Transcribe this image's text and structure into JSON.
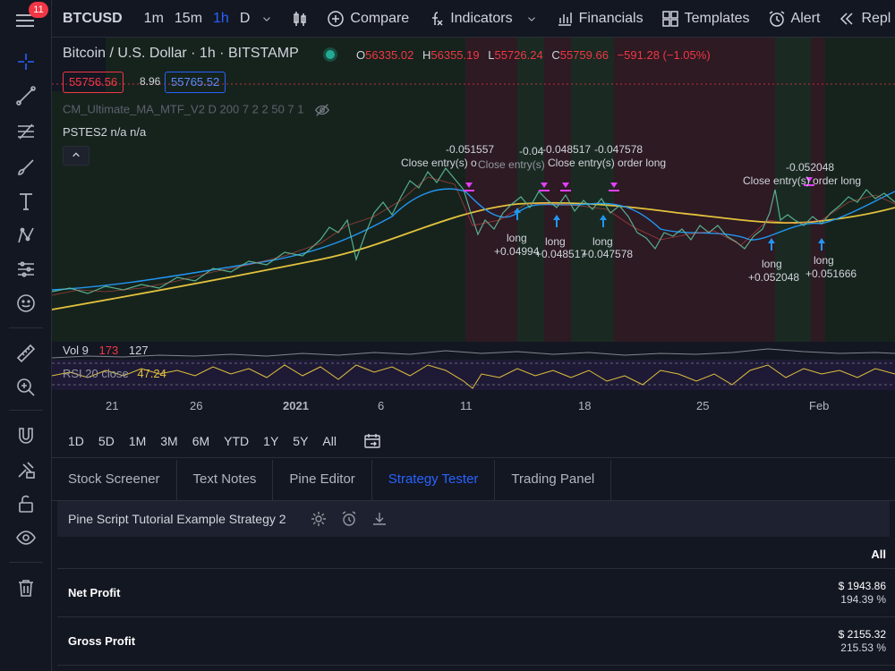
{
  "notification_count": "11",
  "top_bar": {
    "symbol": "BTCUSD",
    "intervals": [
      "1m",
      "15m",
      "1h",
      "D"
    ],
    "selected_interval": "1h",
    "compare": "Compare",
    "indicators": "Indicators",
    "financials": "Financials",
    "templates": "Templates",
    "alert": "Alert",
    "replay": "Repl"
  },
  "chart": {
    "title": "Bitcoin / U.S. Dollar · 1h · BITSTAMP",
    "ohlc": {
      "o": "56335.02",
      "h": "56355.19",
      "l": "55726.24",
      "c": "55759.66",
      "change": "−591.28 (−1.05%)"
    },
    "sell_price": "55756.56",
    "spread": "8.96",
    "buy_price": "55765.52",
    "indicator1": "CM_Ultimate_MA_MTF_V2 D 200 7 2 2 50 7 1",
    "indicator2": "PSTES2  n/a  n/a",
    "annotations": {
      "a1": "-0.051557",
      "a2": "Close entry(s) o",
      "a3": "-0.04",
      "a4": "-0.048517",
      "a5": "-0.047578",
      "a6": "Close entry(s)",
      "a7": "Close entry(s) order long",
      "a8": "-0.052048",
      "a9": "Close entry(s) order long",
      "l1a": "long",
      "l1b": "+0.04994",
      "l2a": "long",
      "l2b": "+0.048517",
      "l3a": "long",
      "l3b": "+0.047578",
      "l4a": "long",
      "l4b": "+0.052048",
      "l5a": "long",
      "l5b": "+0.051666"
    },
    "vol_legend": {
      "name": "Vol 9",
      "v1": "173",
      "v2": "127"
    },
    "rsi_legend": {
      "name": "RSI 20 close",
      "value": "47.24"
    },
    "x_labels": [
      "21",
      "26",
      "2021",
      "6",
      "11",
      "18",
      "25",
      "Feb"
    ]
  },
  "range_bar": [
    "1D",
    "5D",
    "1M",
    "3M",
    "6M",
    "YTD",
    "1Y",
    "5Y",
    "All"
  ],
  "bottom": {
    "tabs": [
      "Stock Screener",
      "Text Notes",
      "Pine Editor",
      "Strategy Tester",
      "Trading Panel"
    ],
    "selected_tab": "Strategy Tester",
    "strategy_name": "Pine Script Tutorial Example Strategy 2",
    "col_header": "All",
    "rows": [
      {
        "label": "Net Profit",
        "value": "$ 1943.86",
        "pct": "194.39 %"
      },
      {
        "label": "Gross Profit",
        "value": "$ 2155.32",
        "pct": "215.53 %"
      }
    ]
  },
  "colors": {
    "accent": "#2962ff",
    "down": "#f23645",
    "up": "#22ab94",
    "ma": "#e2c23c"
  }
}
